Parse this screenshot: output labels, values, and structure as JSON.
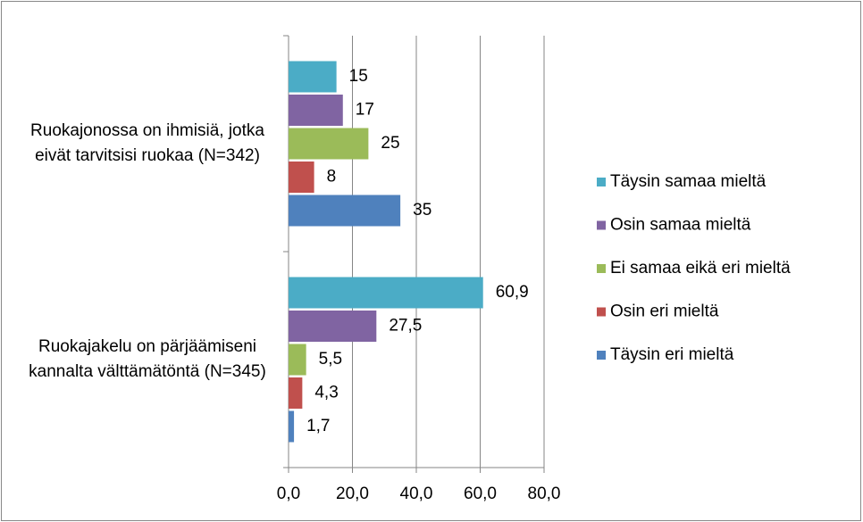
{
  "chart_data": {
    "type": "bar",
    "orientation": "horizontal",
    "categories": [
      "Ruokajonossa on ihmisiä, jotka eivät tarvitsisi ruokaa (N=342)",
      "Ruokajakelu on pärjäämiseni kannalta välttämätöntä (N=345)"
    ],
    "series": [
      {
        "name": "Täysin samaa mieltä",
        "color": "#4bacc6",
        "values": [
          15,
          60.9
        ],
        "value_labels": [
          "15",
          "60,9"
        ]
      },
      {
        "name": "Osin samaa mieltä",
        "color": "#8064a2",
        "values": [
          17,
          27.5
        ],
        "value_labels": [
          "17",
          "27,5"
        ]
      },
      {
        "name": "Ei samaa eikä eri mieltä",
        "color": "#9bbb59",
        "values": [
          25,
          5.5
        ],
        "value_labels": [
          "25",
          "5,5"
        ]
      },
      {
        "name": "Osin eri mieltä",
        "color": "#c0504d",
        "values": [
          8,
          4.3
        ],
        "value_labels": [
          "8",
          "4,3"
        ]
      },
      {
        "name": "Täysin eri mieltä",
        "color": "#4f81bd",
        "values": [
          35,
          1.7
        ],
        "value_labels": [
          "35",
          "1,7"
        ]
      }
    ],
    "xlim": [
      0,
      80
    ],
    "xticks": [
      {
        "value": 0,
        "label": "0,0"
      },
      {
        "value": 20,
        "label": "20,0"
      },
      {
        "value": 40,
        "label": "40,0"
      },
      {
        "value": 60,
        "label": "60,0"
      },
      {
        "value": 80,
        "label": "80,0"
      }
    ],
    "grid": true,
    "legend": "right"
  }
}
